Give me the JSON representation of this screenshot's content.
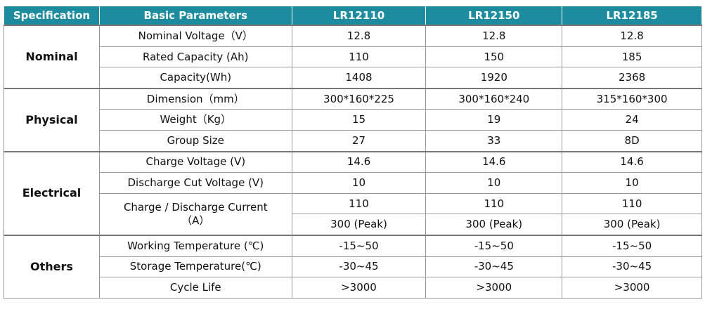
{
  "table": {
    "header": [
      "Specification",
      "Basic Parameters",
      "LR12110",
      "LR12150",
      "LR12185"
    ],
    "groups": [
      {
        "name": "Nominal",
        "rows": [
          {
            "parameter": "Nominal Voltage（V）",
            "lines": [
              [
                "12.8",
                "12.8",
                "12.8"
              ]
            ]
          },
          {
            "parameter": "Rated Capacity (Ah)",
            "lines": [
              [
                "110",
                "150",
                "185"
              ]
            ]
          },
          {
            "parameter": "Capacity(Wh)",
            "lines": [
              [
                "1408",
                "1920",
                "2368"
              ]
            ]
          }
        ]
      },
      {
        "name": "Physical",
        "rows": [
          {
            "parameter": "Dimension（mm）",
            "lines": [
              [
                "300*160*225",
                "300*160*240",
                "315*160*300"
              ]
            ]
          },
          {
            "parameter": "Weight（Kg）",
            "lines": [
              [
                "15",
                "19",
                "24"
              ]
            ]
          },
          {
            "parameter": "Group Size",
            "lines": [
              [
                "27",
                "33",
                "8D"
              ]
            ]
          }
        ]
      },
      {
        "name": "Electrical",
        "rows": [
          {
            "parameter": "Charge Voltage (V)",
            "lines": [
              [
                "14.6",
                "14.6",
                "14.6"
              ]
            ]
          },
          {
            "parameter": "Discharge Cut Voltage (V)",
            "lines": [
              [
                "10",
                "10",
                "10"
              ]
            ]
          },
          {
            "parameter": "Charge / Discharge Current\n（A）",
            "lines": [
              [
                "110",
                "110",
                "110"
              ],
              [
                "300 (Peak)",
                "300 (Peak)",
                "300 (Peak)"
              ]
            ]
          }
        ]
      },
      {
        "name": "Others",
        "rows": [
          {
            "parameter": "Working Temperature (℃)",
            "lines": [
              [
                "-15~50",
                "-15~50",
                "-15~50"
              ]
            ]
          },
          {
            "parameter": "Storage Temperature(℃)",
            "lines": [
              [
                "-30~45",
                "-30~45",
                "-30~45"
              ]
            ]
          },
          {
            "parameter": "Cycle Life",
            "lines": [
              [
                ">3000",
                ">3000",
                ">3000"
              ]
            ]
          }
        ]
      }
    ]
  }
}
